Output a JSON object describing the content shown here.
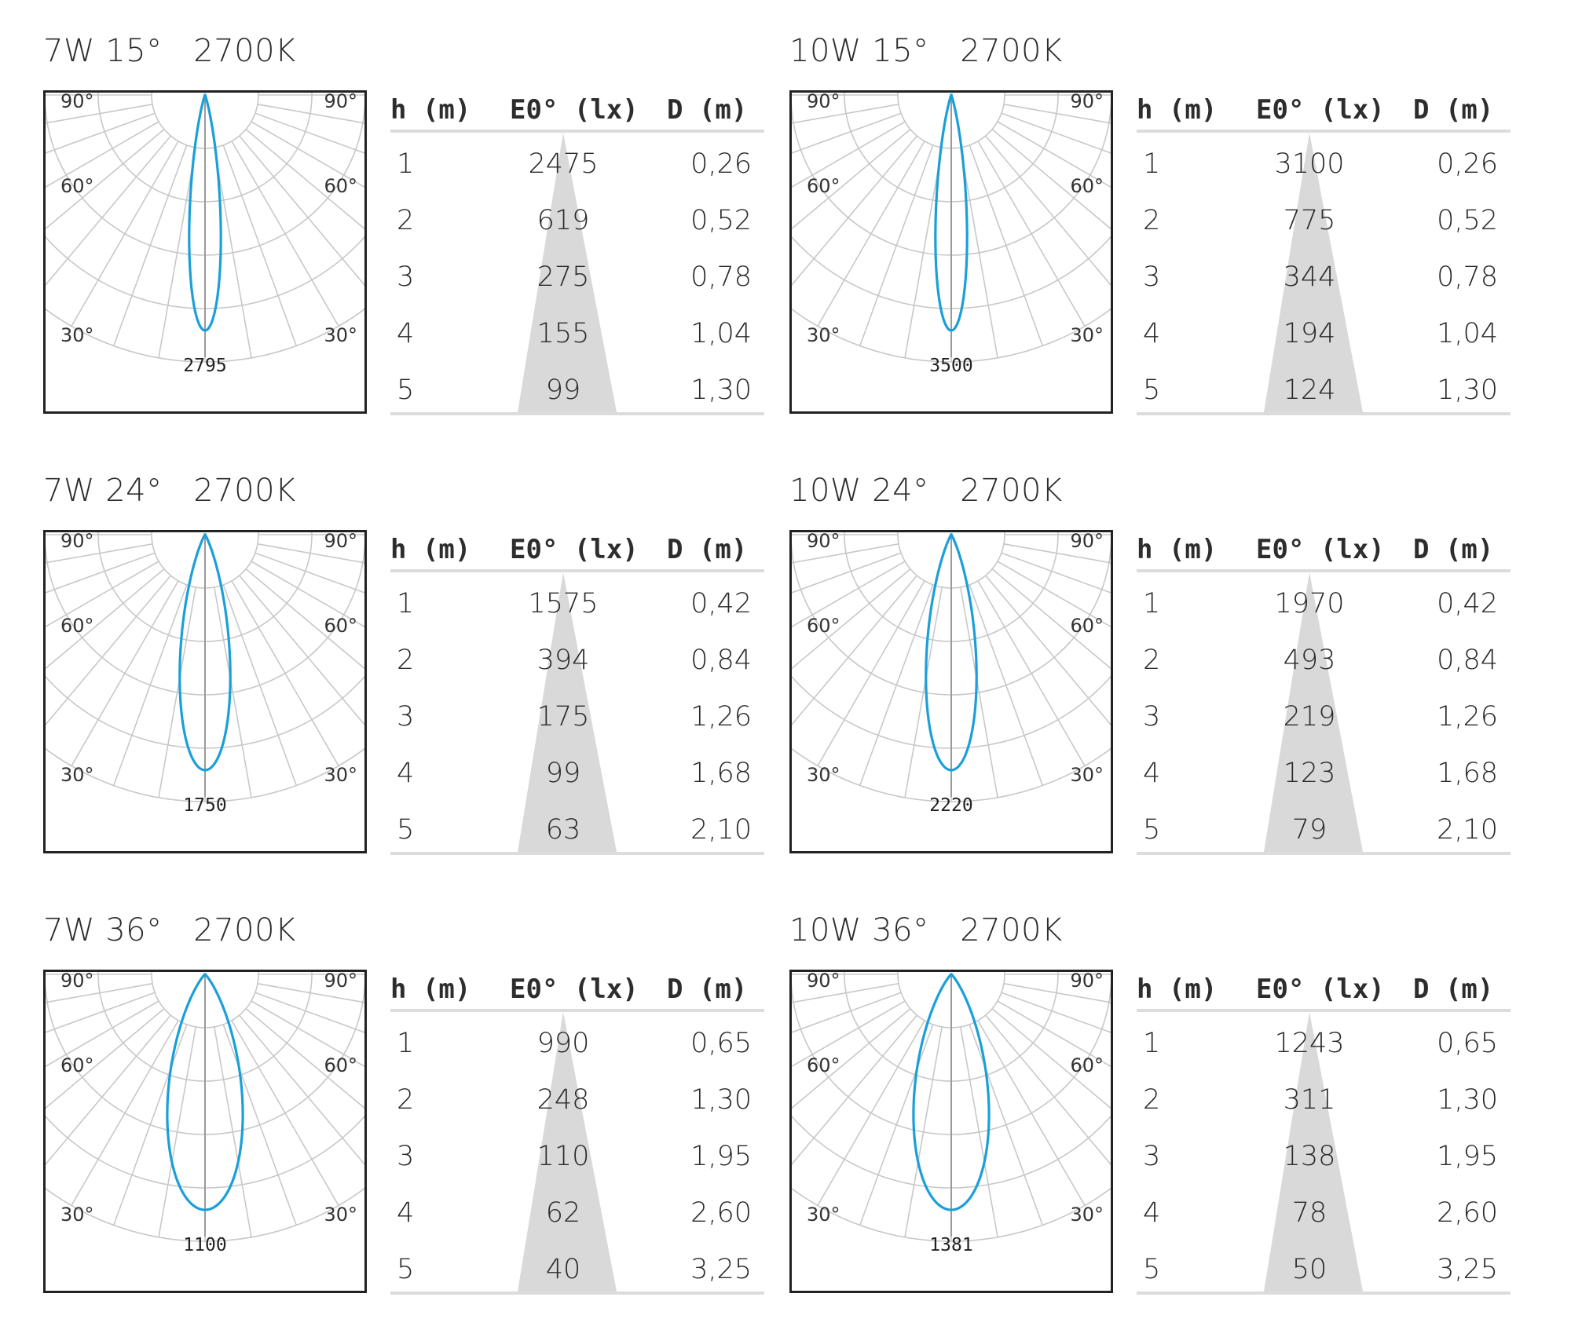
{
  "colors": {
    "curve": "#1a9fd9",
    "grid": "#c8c8c8",
    "frame": "#222222",
    "cone": "#d9d9d9",
    "rule": "#dcdcdc"
  },
  "table_headers": {
    "h": "h (m)",
    "e": "E0° (lx)",
    "d": "D (m)"
  },
  "panels": [
    {
      "title": "7W 15°   2700K",
      "peak": "2795"
    },
    {
      "title": "10W 15°   2700K",
      "peak": "3500"
    },
    {
      "title": "7W 24°   2700K",
      "peak": "1750"
    },
    {
      "title": "10W 24°   2700K",
      "peak": "2220"
    },
    {
      "title": "7W 36°   2700K",
      "peak": "1100"
    },
    {
      "title": "10W 36°   2700K",
      "peak": "1381"
    }
  ],
  "chart_data": [
    {
      "type": "table",
      "title": "7W 15°   2700K",
      "beam_angle_deg": 15,
      "peak_intensity": 2795,
      "angle_labels": [
        "90°",
        "60°",
        "30°"
      ],
      "columns": [
        "h (m)",
        "E0° (lx)",
        "D (m)"
      ],
      "rows": [
        [
          "1",
          "2475",
          "0,26"
        ],
        [
          "2",
          "619",
          "0,52"
        ],
        [
          "3",
          "275",
          "0,78"
        ],
        [
          "4",
          "155",
          "1,04"
        ],
        [
          "5",
          "99",
          "1,30"
        ]
      ]
    },
    {
      "type": "table",
      "title": "10W 15°   2700K",
      "beam_angle_deg": 15,
      "peak_intensity": 3500,
      "angle_labels": [
        "90°",
        "60°",
        "30°"
      ],
      "columns": [
        "h (m)",
        "E0° (lx)",
        "D (m)"
      ],
      "rows": [
        [
          "1",
          "3100",
          "0,26"
        ],
        [
          "2",
          "775",
          "0,52"
        ],
        [
          "3",
          "344",
          "0,78"
        ],
        [
          "4",
          "194",
          "1,04"
        ],
        [
          "5",
          "124",
          "1,30"
        ]
      ]
    },
    {
      "type": "table",
      "title": "7W 24°   2700K",
      "beam_angle_deg": 24,
      "peak_intensity": 1750,
      "angle_labels": [
        "90°",
        "60°",
        "30°"
      ],
      "columns": [
        "h (m)",
        "E0° (lx)",
        "D (m)"
      ],
      "rows": [
        [
          "1",
          "1575",
          "0,42"
        ],
        [
          "2",
          "394",
          "0,84"
        ],
        [
          "3",
          "175",
          "1,26"
        ],
        [
          "4",
          "99",
          "1,68"
        ],
        [
          "5",
          "63",
          "2,10"
        ]
      ]
    },
    {
      "type": "table",
      "title": "10W 24°   2700K",
      "beam_angle_deg": 24,
      "peak_intensity": 2220,
      "angle_labels": [
        "90°",
        "60°",
        "30°"
      ],
      "columns": [
        "h (m)",
        "E0° (lx)",
        "D (m)"
      ],
      "rows": [
        [
          "1",
          "1970",
          "0,42"
        ],
        [
          "2",
          "493",
          "0,84"
        ],
        [
          "3",
          "219",
          "1,26"
        ],
        [
          "4",
          "123",
          "1,68"
        ],
        [
          "5",
          "79",
          "2,10"
        ]
      ]
    },
    {
      "type": "table",
      "title": "7W 36°   2700K",
      "beam_angle_deg": 36,
      "peak_intensity": 1100,
      "angle_labels": [
        "90°",
        "60°",
        "30°"
      ],
      "columns": [
        "h (m)",
        "E0° (lx)",
        "D (m)"
      ],
      "rows": [
        [
          "1",
          "990",
          "0,65"
        ],
        [
          "2",
          "248",
          "1,30"
        ],
        [
          "3",
          "110",
          "1,95"
        ],
        [
          "4",
          "62",
          "2,60"
        ],
        [
          "5",
          "40",
          "3,25"
        ]
      ]
    },
    {
      "type": "table",
      "title": "10W 36°   2700K",
      "beam_angle_deg": 36,
      "peak_intensity": 1381,
      "angle_labels": [
        "90°",
        "60°",
        "30°"
      ],
      "columns": [
        "h (m)",
        "E0° (lx)",
        "D (m)"
      ],
      "rows": [
        [
          "1",
          "1243",
          "0,65"
        ],
        [
          "2",
          "311",
          "1,30"
        ],
        [
          "3",
          "138",
          "1,95"
        ],
        [
          "4",
          "78",
          "2,60"
        ],
        [
          "5",
          "50",
          "3,25"
        ]
      ]
    }
  ]
}
